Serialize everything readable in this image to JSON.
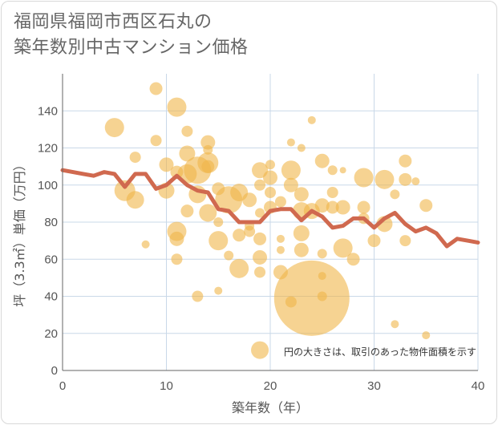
{
  "title": {
    "line1": "福岡県福岡市西区石丸の",
    "line2": "築年数別中古マンション価格"
  },
  "colors": {
    "bubble": "#F0B54A",
    "line": "#D0694F",
    "grid": "#C9D8E8",
    "axis": "#666666"
  },
  "chart_data": {
    "type": "scatter",
    "xlabel": "築年数（年）",
    "ylabel": "坪（3.3㎡）単価（万円）",
    "xlim": [
      0,
      40
    ],
    "ylim": [
      0,
      160
    ],
    "xticks": [
      "0",
      "10",
      "20",
      "30",
      "40"
    ],
    "yticks": [
      "0",
      "20",
      "40",
      "60",
      "80",
      "100",
      "120",
      "140"
    ],
    "grid": true,
    "annotation": "円の大きさは、取引のあった物件面積を示す",
    "series": [
      {
        "type": "line",
        "x": [
          0,
          1,
          2,
          3,
          4,
          5,
          6,
          7,
          8,
          9,
          10,
          11,
          12,
          13,
          14,
          15,
          16,
          17,
          18,
          19,
          20,
          21,
          22,
          23,
          24,
          25,
          26,
          27,
          28,
          29,
          30,
          31,
          32,
          33,
          34,
          35,
          36,
          37,
          38,
          39,
          40
        ],
        "values": [
          108,
          107,
          106,
          105,
          107,
          106,
          99,
          106,
          106,
          98,
          100,
          105,
          100,
          97,
          96,
          87,
          86,
          80,
          80,
          80,
          86,
          87,
          87,
          81,
          86,
          83,
          77,
          78,
          82,
          82,
          77,
          82,
          85,
          79,
          75,
          77,
          74,
          67,
          71,
          70,
          69
        ]
      },
      {
        "type": "bubble",
        "points": [
          {
            "x": 5,
            "y": 131,
            "r": 12
          },
          {
            "x": 6,
            "y": 97,
            "r": 13
          },
          {
            "x": 7,
            "y": 92,
            "r": 11
          },
          {
            "x": 7,
            "y": 115,
            "r": 7
          },
          {
            "x": 8,
            "y": 68,
            "r": 5
          },
          {
            "x": 9,
            "y": 152,
            "r": 8
          },
          {
            "x": 9,
            "y": 124,
            "r": 7
          },
          {
            "x": 10,
            "y": 111,
            "r": 9
          },
          {
            "x": 10,
            "y": 97,
            "r": 10
          },
          {
            "x": 11,
            "y": 142,
            "r": 12
          },
          {
            "x": 11,
            "y": 75,
            "r": 12
          },
          {
            "x": 11,
            "y": 71,
            "r": 9
          },
          {
            "x": 11,
            "y": 60,
            "r": 7
          },
          {
            "x": 11,
            "y": 107,
            "r": 8
          },
          {
            "x": 12,
            "y": 117,
            "r": 10
          },
          {
            "x": 12,
            "y": 106,
            "r": 12
          },
          {
            "x": 12,
            "y": 86,
            "r": 8
          },
          {
            "x": 12,
            "y": 129,
            "r": 7
          },
          {
            "x": 13,
            "y": 108,
            "r": 17
          },
          {
            "x": 13,
            "y": 95,
            "r": 11
          },
          {
            "x": 13,
            "y": 40,
            "r": 7
          },
          {
            "x": 14,
            "y": 123,
            "r": 9
          },
          {
            "x": 14,
            "y": 112,
            "r": 13
          },
          {
            "x": 14,
            "y": 110,
            "r": 8
          },
          {
            "x": 14,
            "y": 85,
            "r": 11
          },
          {
            "x": 14,
            "y": 119,
            "r": 6
          },
          {
            "x": 15,
            "y": 70,
            "r": 12
          },
          {
            "x": 15,
            "y": 98,
            "r": 8
          },
          {
            "x": 15,
            "y": 43,
            "r": 5
          },
          {
            "x": 15,
            "y": 80,
            "r": 6
          },
          {
            "x": 16,
            "y": 92,
            "r": 17
          },
          {
            "x": 16,
            "y": 62,
            "r": 6
          },
          {
            "x": 17,
            "y": 96,
            "r": 11
          },
          {
            "x": 17,
            "y": 73,
            "r": 8
          },
          {
            "x": 17,
            "y": 55,
            "r": 12
          },
          {
            "x": 18,
            "y": 92,
            "r": 9
          },
          {
            "x": 18,
            "y": 75,
            "r": 7
          },
          {
            "x": 18,
            "y": 78,
            "r": 6
          },
          {
            "x": 19,
            "y": 108,
            "r": 10
          },
          {
            "x": 19,
            "y": 100,
            "r": 7
          },
          {
            "x": 19,
            "y": 71,
            "r": 8
          },
          {
            "x": 19,
            "y": 61,
            "r": 9
          },
          {
            "x": 19,
            "y": 11,
            "r": 11
          },
          {
            "x": 19,
            "y": 85,
            "r": 6
          },
          {
            "x": 19,
            "y": 53,
            "r": 7
          },
          {
            "x": 20,
            "y": 104,
            "r": 9
          },
          {
            "x": 20,
            "y": 96,
            "r": 7
          },
          {
            "x": 20,
            "y": 88,
            "r": 8
          },
          {
            "x": 20,
            "y": 111,
            "r": 6
          },
          {
            "x": 21,
            "y": 91,
            "r": 7
          },
          {
            "x": 21,
            "y": 71,
            "r": 5
          },
          {
            "x": 21,
            "y": 65,
            "r": 5
          },
          {
            "x": 21,
            "y": 53,
            "r": 9
          },
          {
            "x": 22,
            "y": 108,
            "r": 12
          },
          {
            "x": 22,
            "y": 100,
            "r": 9
          },
          {
            "x": 22,
            "y": 123,
            "r": 5
          },
          {
            "x": 22,
            "y": 37,
            "r": 7
          },
          {
            "x": 23,
            "y": 95,
            "r": 9
          },
          {
            "x": 23,
            "y": 86,
            "r": 11
          },
          {
            "x": 23,
            "y": 74,
            "r": 10
          },
          {
            "x": 23,
            "y": 65,
            "r": 9
          },
          {
            "x": 23,
            "y": 120,
            "r": 5
          },
          {
            "x": 24,
            "y": 39,
            "r": 47
          },
          {
            "x": 24,
            "y": 135,
            "r": 5
          },
          {
            "x": 24,
            "y": 86,
            "r": 10
          },
          {
            "x": 25,
            "y": 113,
            "r": 9
          },
          {
            "x": 25,
            "y": 89,
            "r": 9
          },
          {
            "x": 25,
            "y": 40,
            "r": 6
          },
          {
            "x": 25,
            "y": 51,
            "r": 5
          },
          {
            "x": 25,
            "y": 63,
            "r": 6
          },
          {
            "x": 26,
            "y": 108,
            "r": 6
          },
          {
            "x": 26,
            "y": 96,
            "r": 7
          },
          {
            "x": 26,
            "y": 88,
            "r": 8
          },
          {
            "x": 27,
            "y": 88,
            "r": 9
          },
          {
            "x": 27,
            "y": 66,
            "r": 12
          },
          {
            "x": 27,
            "y": 108,
            "r": 4
          },
          {
            "x": 28,
            "y": 60,
            "r": 8
          },
          {
            "x": 29,
            "y": 104,
            "r": 12
          },
          {
            "x": 29,
            "y": 88,
            "r": 8
          },
          {
            "x": 29,
            "y": 82,
            "r": 7
          },
          {
            "x": 30,
            "y": 70,
            "r": 8
          },
          {
            "x": 31,
            "y": 103,
            "r": 12
          },
          {
            "x": 31,
            "y": 79,
            "r": 10
          },
          {
            "x": 32,
            "y": 95,
            "r": 6
          },
          {
            "x": 32,
            "y": 25,
            "r": 5
          },
          {
            "x": 33,
            "y": 113,
            "r": 8
          },
          {
            "x": 33,
            "y": 103,
            "r": 8
          },
          {
            "x": 33,
            "y": 70,
            "r": 7
          },
          {
            "x": 34,
            "y": 102,
            "r": 5
          },
          {
            "x": 35,
            "y": 89,
            "r": 8
          },
          {
            "x": 35,
            "y": 19,
            "r": 5
          }
        ]
      }
    ]
  }
}
